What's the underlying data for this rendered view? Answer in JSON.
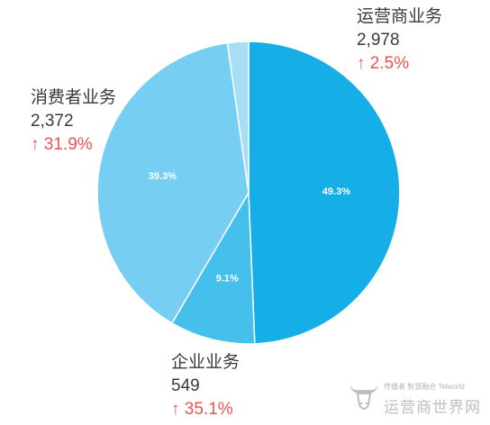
{
  "chart_data": {
    "type": "pie",
    "slices": [
      {
        "name": "运营商业务",
        "value": 2978,
        "value_label": "2,978",
        "change": "↑ 2.5%",
        "pct_label": "49.3%",
        "color": "#16aee6"
      },
      {
        "name": "企业业务",
        "value": 549,
        "value_label": "549",
        "change": "↑ 35.1%",
        "pct_label": "9.1%",
        "color": "#45c0ec"
      },
      {
        "name": "消费者业务",
        "value": 2372,
        "value_label": "2,372",
        "change": "↑ 31.9%",
        "pct_label": "39.3%",
        "color": "#76cff2"
      },
      {
        "name": "",
        "value": 135,
        "value_label": "",
        "change": "",
        "pct_label": "",
        "color": "#a5def5"
      }
    ]
  },
  "labels": {
    "telecom": {
      "name": "运营商业务",
      "value": "2,978",
      "change": "↑ 2.5%"
    },
    "consumer": {
      "name": "消费者业务",
      "value": "2,372",
      "change": "↑ 31.9%"
    },
    "enterprise": {
      "name": "企业业务",
      "value": "549",
      "change": "↑ 35.1%"
    }
  },
  "watermark": {
    "small": "传播者 智慧融合 Telworld",
    "big": "运营商世界网",
    "logo": "bull-head-logo"
  }
}
